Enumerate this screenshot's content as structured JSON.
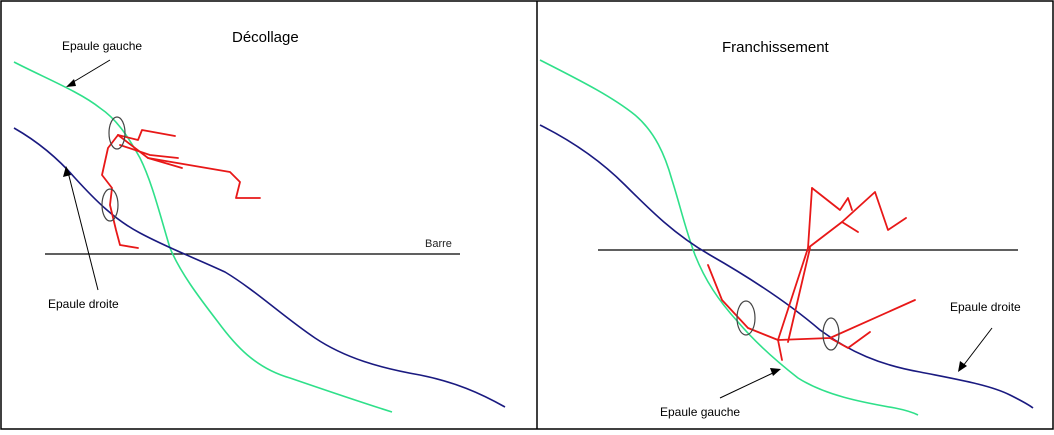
{
  "panels": [
    {
      "title": "Décollage",
      "bar_label": "Barre",
      "labels": {
        "left_shoulder": "Epaule gauche",
        "right_shoulder": "Epaule droite"
      }
    },
    {
      "title": "Franchissement",
      "labels": {
        "left_shoulder": "Epaule gauche",
        "right_shoulder": "Epaule droite"
      }
    }
  ],
  "colors": {
    "left_shoulder_trace": "#2fe08a",
    "right_shoulder_trace": "#1a1a80",
    "stick_figure": "#e81818",
    "bar": "#000000",
    "marker": "#444444",
    "frame": "#000000"
  }
}
